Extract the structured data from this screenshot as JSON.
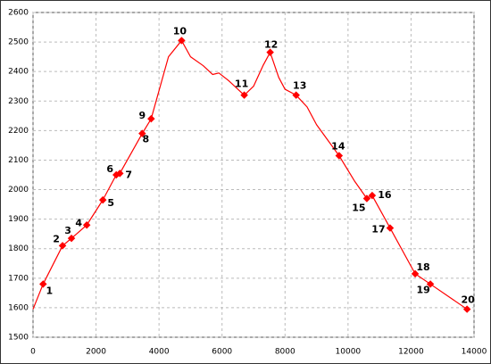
{
  "chart_data": {
    "type": "line",
    "x": [
      0,
      320,
      937,
      1220,
      1705,
      2216,
      2642,
      2756,
      3466,
      3750,
      4300,
      4716,
      5000,
      5400,
      5700,
      5900,
      6200,
      6705,
      7000,
      7300,
      7528,
      7800,
      8000,
      8352,
      8700,
      9000,
      9716,
      10200,
      10597,
      10767,
      11335,
      12131,
      12614,
      13778
    ],
    "values": [
      1595,
      1680,
      1810,
      1835,
      1880,
      1965,
      2050,
      2055,
      2190,
      2240,
      2450,
      2505,
      2450,
      2420,
      2390,
      2395,
      2370,
      2320,
      2350,
      2420,
      2465,
      2380,
      2340,
      2320,
      2280,
      2220,
      2115,
      2030,
      1970,
      1980,
      1870,
      1715,
      1680,
      1595
    ],
    "color": "#ff0000",
    "markers": {
      "x": [
        320,
        937,
        1220,
        1705,
        2216,
        2642,
        2756,
        3466,
        3750,
        4716,
        6705,
        7528,
        8352,
        9716,
        10597,
        10767,
        11335,
        12131,
        12614,
        13778
      ],
      "values": [
        1680,
        1810,
        1835,
        1880,
        1965,
        2050,
        2055,
        2190,
        2240,
        2505,
        2320,
        2465,
        2320,
        2115,
        1970,
        1980,
        1870,
        1715,
        1680,
        1595
      ],
      "labels": [
        "1",
        "2",
        "3",
        "4",
        "5",
        "6",
        "7",
        "8",
        "9",
        "10",
        "11",
        "12",
        "13",
        "14",
        "15",
        "16",
        "17",
        "18",
        "19",
        "20"
      ]
    },
    "xlim": [
      0,
      14000
    ],
    "ylim": [
      1500,
      2600
    ],
    "xticks": [
      0,
      2000,
      4000,
      6000,
      8000,
      10000,
      12000,
      14000
    ],
    "yticks": [
      1500,
      1600,
      1700,
      1800,
      1900,
      2000,
      2100,
      2200,
      2300,
      2400,
      2500,
      2600
    ],
    "grid": true
  }
}
